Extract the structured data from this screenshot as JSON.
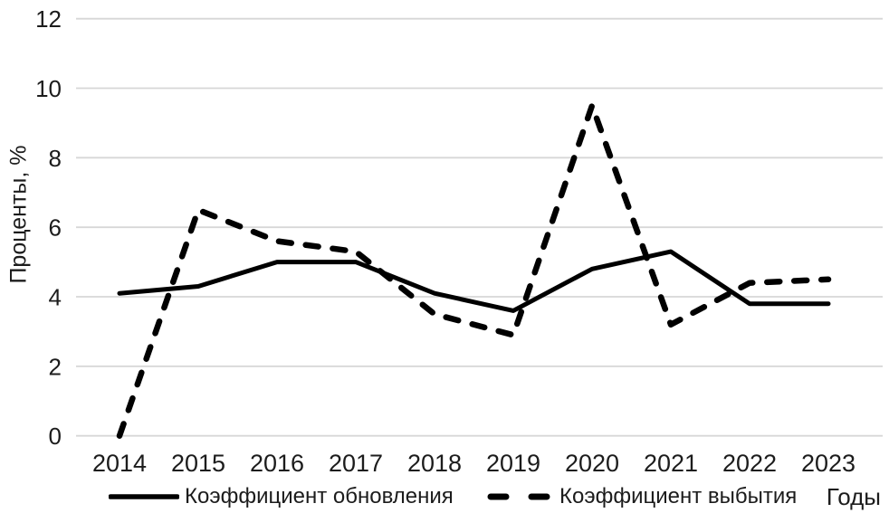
{
  "colors": {
    "line": "#000000",
    "grid": "#d7d7d7",
    "text": "#1c1c1c"
  },
  "chart_data": {
    "type": "line",
    "title": "",
    "x": [
      "2014",
      "2015",
      "2016",
      "2017",
      "2018",
      "2019",
      "2020",
      "2021",
      "2022",
      "2023"
    ],
    "xlabel": "Годы",
    "ylabel": "Проценты, %",
    "ylim": [
      0,
      12
    ],
    "yticks": [
      0,
      2,
      4,
      6,
      8,
      10,
      12
    ],
    "grid": true,
    "legend_position": "bottom",
    "series": [
      {
        "name": "Коэффициент обновления",
        "line_style": "solid",
        "values": [
          4.1,
          4.3,
          5.0,
          5.0,
          4.1,
          3.6,
          4.8,
          5.3,
          3.8,
          3.8
        ]
      },
      {
        "name": "Коэффициент выбытия",
        "line_style": "dashed",
        "values": [
          0,
          6.5,
          5.6,
          5.3,
          3.5,
          2.9,
          9.5,
          3.2,
          4.4,
          4.5
        ]
      }
    ]
  }
}
